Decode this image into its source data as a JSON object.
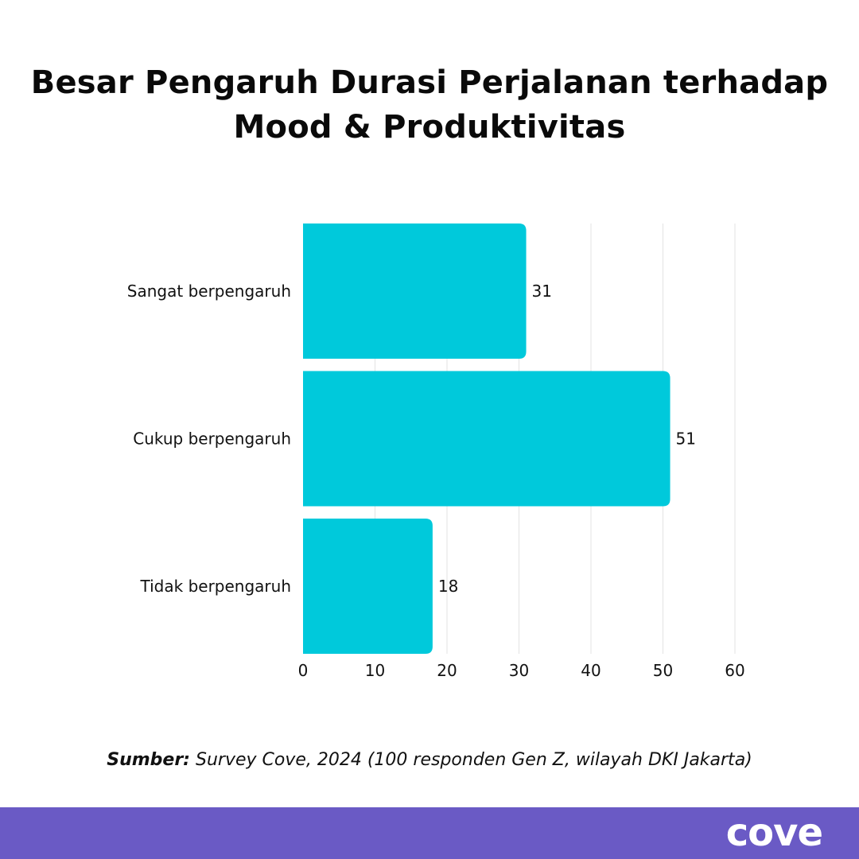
{
  "page": {
    "title_line1": "Besar Pengaruh Durasi Perjalanan terhadap",
    "title_line2": "Mood & Produktivitas",
    "source_label": "Sumber:",
    "source_text": "Survey Cove, 2024 (100 responden Gen Z, wilayah DKI Jakarta)",
    "logo": "cove",
    "colors": {
      "bar": "#00C9DB",
      "footer": "#6A5AC5",
      "grid": "#E3E3E3"
    }
  },
  "chart_data": {
    "type": "bar",
    "orientation": "horizontal",
    "categories": [
      "Sangat berpengaruh",
      "Cukup berpengaruh",
      "Tidak berpengaruh"
    ],
    "values": [
      31,
      51,
      18
    ],
    "xlim": [
      0,
      60
    ],
    "xticks": [
      0,
      10,
      20,
      30,
      40,
      50,
      60
    ],
    "grid": true,
    "data_labels": true
  }
}
